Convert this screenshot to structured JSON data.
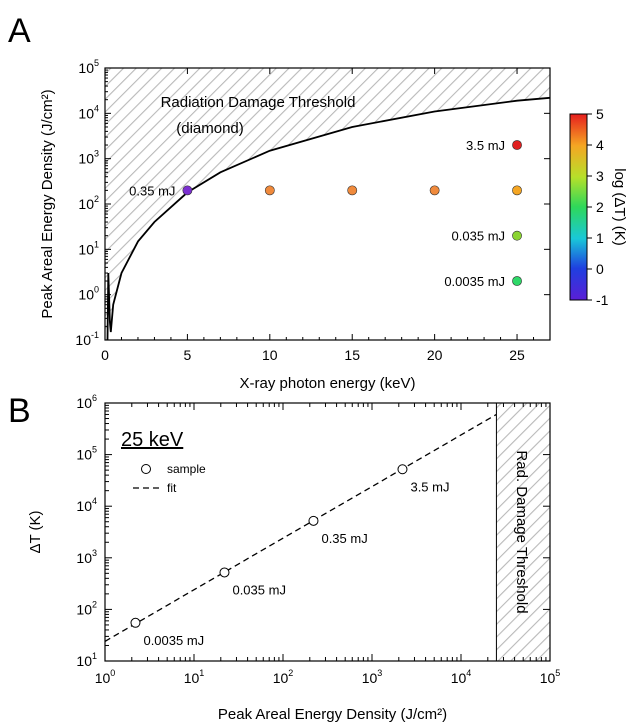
{
  "chart_data": [
    {
      "panel": "A",
      "type": "scatter",
      "xlabel": "X-ray photon energy (keV)",
      "ylabel": "Peak Areal Energy Density (J/cm²)",
      "xlim": [
        0,
        27
      ],
      "ylim": [
        0.1,
        100000
      ],
      "yscale": "log",
      "x_ticks": [
        "0",
        "5",
        "10",
        "15",
        "20",
        "25"
      ],
      "threshold_label": [
        "Radiation Damage Threshold",
        "(diamond)"
      ],
      "threshold_curve": {
        "x": [
          0.15,
          0.2,
          0.3,
          0.35,
          0.5,
          1,
          2,
          3,
          5,
          7,
          10,
          15,
          20,
          25,
          27
        ],
        "y": [
          0.1,
          3,
          0.25,
          0.15,
          0.6,
          3,
          15,
          40,
          180,
          500,
          1500,
          5000,
          11000,
          19000,
          22000
        ]
      },
      "points": [
        {
          "x": 5,
          "y": 200,
          "color": "#7b2fd0",
          "label": "0.35 mJ"
        },
        {
          "x": 10,
          "y": 200,
          "color": "#f08a3c",
          "label": ""
        },
        {
          "x": 15,
          "y": 200,
          "color": "#f08a3c",
          "label": ""
        },
        {
          "x": 20,
          "y": 200,
          "color": "#f08a3c",
          "label": ""
        },
        {
          "x": 25,
          "y": 200,
          "color": "#f5a623",
          "label": ""
        },
        {
          "x": 25,
          "y": 2000,
          "color": "#e02020",
          "label": "3.5 mJ"
        },
        {
          "x": 25,
          "y": 20,
          "color": "#8bd432",
          "label": "0.035 mJ"
        },
        {
          "x": 25,
          "y": 2,
          "color": "#2ed868",
          "label": "0.0035 mJ"
        }
      ],
      "colorbar": {
        "label": "log (ΔT) (K)",
        "min": -1,
        "max": 5,
        "ticks": [
          "-1",
          "0",
          "1",
          "2",
          "3",
          "4",
          "5"
        ]
      }
    },
    {
      "panel": "B",
      "type": "scatter",
      "xlabel": "Peak Areal Energy Density (J/cm²)",
      "ylabel": "ΔT (K)",
      "xscale": "log",
      "yscale": "log",
      "xlim": [
        1,
        100000
      ],
      "ylim": [
        10,
        1000000
      ],
      "legend_title": "25 keV",
      "legend": [
        "sample",
        "fit"
      ],
      "legend_position": "top-left",
      "threshold_label": "Rad. Damage Threshold",
      "threshold_region": [
        25000,
        100000
      ],
      "series": [
        {
          "name": "sample",
          "x": [
            2.2,
            22,
            220,
            2200
          ],
          "y": [
            55,
            520,
            5200,
            52000
          ],
          "labels": [
            "0.0035 mJ",
            "0.035 mJ",
            "0.35 mJ",
            "3.5 mJ"
          ]
        },
        {
          "name": "fit",
          "x": [
            1,
            25000
          ],
          "y": [
            24,
            600000
          ]
        }
      ]
    }
  ]
}
